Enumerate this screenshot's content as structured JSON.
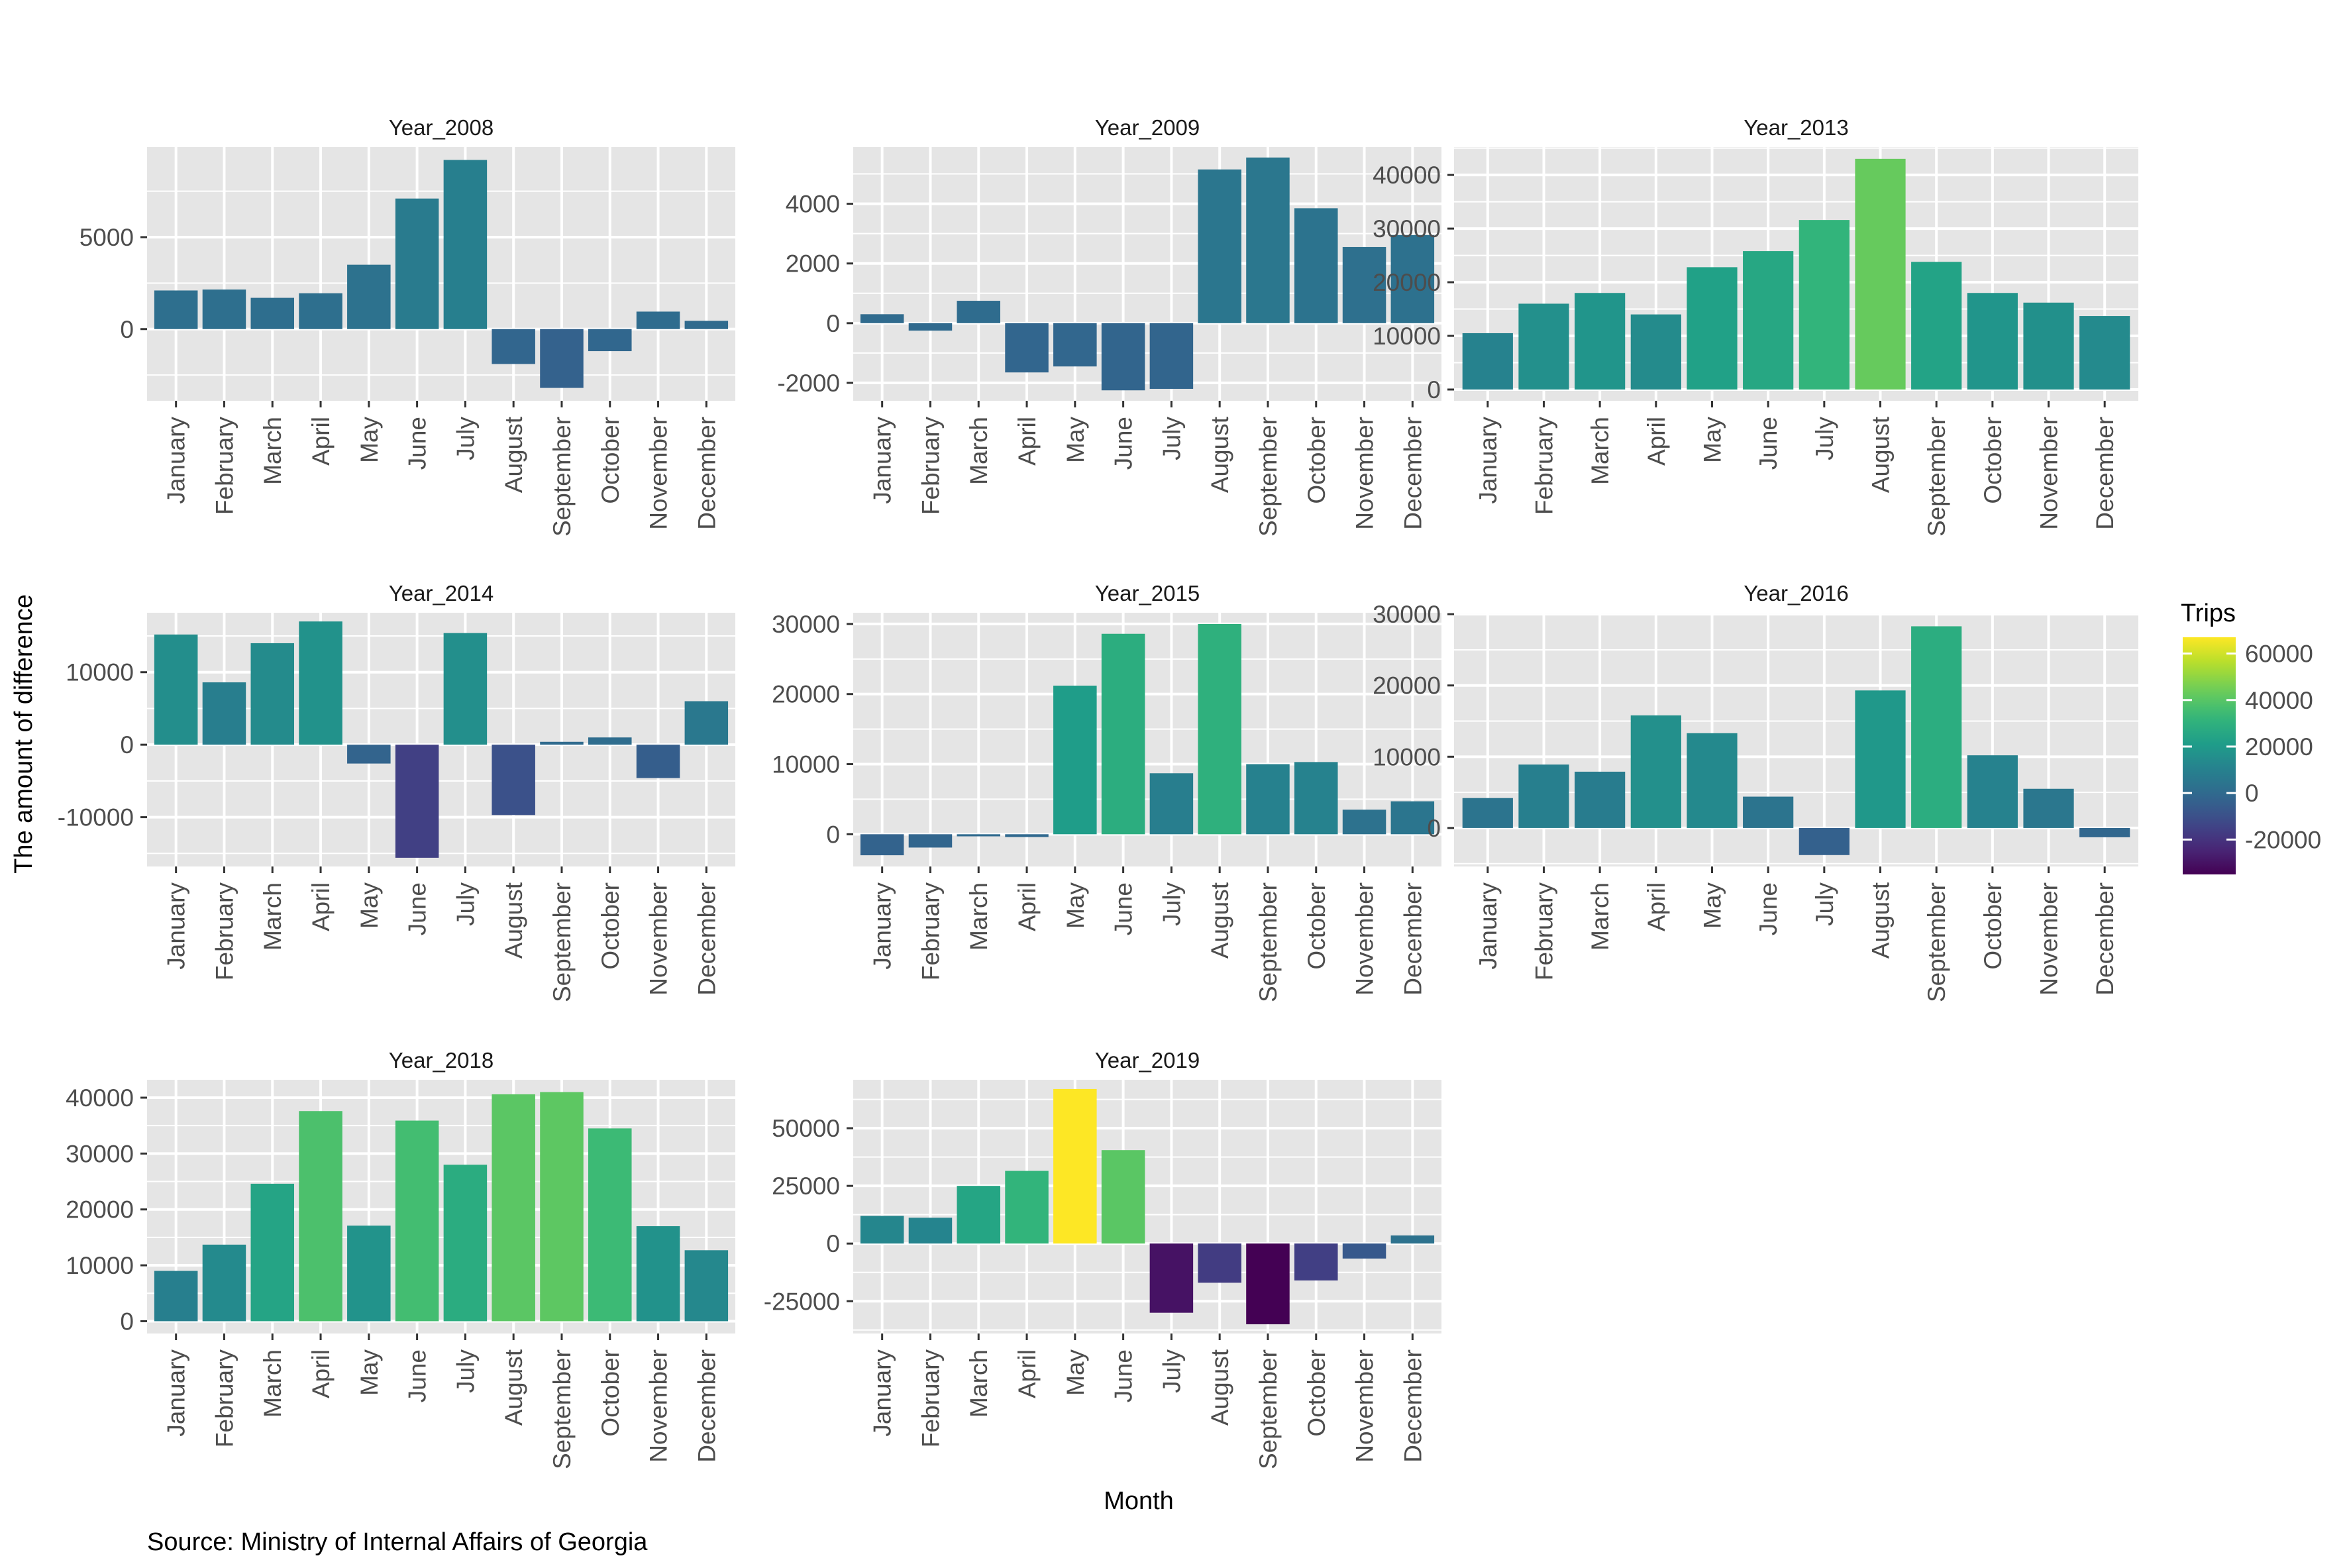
{
  "figure": {
    "ylabel": "The amount of difference",
    "xlabel": "Month",
    "caption": "Source: Ministry of Internal Affairs of Georgia",
    "legend": {
      "title": "Trips",
      "placement": "right",
      "ticks": [
        "60000",
        "40000",
        "20000",
        "0",
        "-20000"
      ],
      "tick_values": [
        60000,
        40000,
        20000,
        0,
        -20000
      ],
      "range": [
        -35000,
        67000
      ],
      "colormap": "viridis"
    },
    "colors": {
      "panel_bg": "#e5e5e5",
      "grid": "#ffffff",
      "text": "#4d4d4d",
      "title_text": "#1a1a1a"
    }
  },
  "chart_data": [
    {
      "type": "bar",
      "title": "Year_2008",
      "categories": [
        "January",
        "February",
        "March",
        "April",
        "May",
        "June",
        "July",
        "August",
        "September",
        "October",
        "November",
        "December"
      ],
      "values": [
        2100,
        2150,
        1700,
        1950,
        3500,
        7100,
        9200,
        -1900,
        -3200,
        -1200,
        950,
        450
      ],
      "ylim": [
        -3900,
        9900
      ],
      "yticks": [
        0,
        5000
      ],
      "yticklabels": [
        "0",
        "5000"
      ]
    },
    {
      "type": "bar",
      "title": "Year_2009",
      "categories": [
        "January",
        "February",
        "March",
        "April",
        "May",
        "June",
        "July",
        "August",
        "September",
        "October",
        "November",
        "December"
      ],
      "values": [
        300,
        -250,
        750,
        -1650,
        -1450,
        -2250,
        -2200,
        5150,
        5550,
        3850,
        2550,
        2950
      ],
      "ylim": [
        -2600,
        5900
      ],
      "yticks": [
        -2000,
        0,
        2000,
        4000
      ],
      "yticklabels": [
        "-2000",
        "0",
        "2000",
        "4000"
      ]
    },
    {
      "type": "bar",
      "title": "Year_2013",
      "categories": [
        "January",
        "February",
        "March",
        "April",
        "May",
        "June",
        "July",
        "August",
        "September",
        "October",
        "November",
        "December"
      ],
      "values": [
        10500,
        16000,
        18000,
        14000,
        22800,
        25800,
        31600,
        43000,
        23800,
        18000,
        16200,
        13700
      ],
      "ylim": [
        -2100,
        45200
      ],
      "yticks": [
        0,
        10000,
        20000,
        30000,
        40000
      ],
      "yticklabels": [
        "0",
        "10000",
        "20000",
        "30000",
        "40000"
      ]
    },
    {
      "type": "bar",
      "title": "Year_2014",
      "categories": [
        "January",
        "February",
        "March",
        "April",
        "May",
        "June",
        "July",
        "August",
        "September",
        "October",
        "November",
        "December"
      ],
      "values": [
        15200,
        8600,
        14000,
        17000,
        -2600,
        -15600,
        15400,
        -9700,
        400,
        1000,
        -4600,
        6000
      ],
      "ylim": [
        -16800,
        18200
      ],
      "yticks": [
        -10000,
        0,
        10000
      ],
      "yticklabels": [
        "-10000",
        "0",
        "10000"
      ]
    },
    {
      "type": "bar",
      "title": "Year_2015",
      "categories": [
        "January",
        "February",
        "March",
        "April",
        "May",
        "June",
        "July",
        "August",
        "September",
        "October",
        "November",
        "December"
      ],
      "values": [
        -3000,
        -1900,
        -300,
        -400,
        21200,
        28600,
        8700,
        30000,
        10000,
        10300,
        3500,
        4700
      ],
      "ylim": [
        -4600,
        31600
      ],
      "yticks": [
        0,
        10000,
        20000,
        30000
      ],
      "yticklabels": [
        "0",
        "10000",
        "20000",
        "30000"
      ]
    },
    {
      "type": "bar",
      "title": "Year_2016",
      "categories": [
        "January",
        "February",
        "March",
        "April",
        "May",
        "June",
        "July",
        "August",
        "September",
        "October",
        "November",
        "December"
      ],
      "values": [
        4200,
        8900,
        7900,
        15800,
        13300,
        4400,
        -3800,
        19300,
        28300,
        10200,
        5500,
        -1300
      ],
      "ylim": [
        -5400,
        30200
      ],
      "yticks": [
        0,
        10000,
        20000,
        30000
      ],
      "yticklabels": [
        "0",
        "10000",
        "20000",
        "30000"
      ]
    },
    {
      "type": "bar",
      "title": "Year_2018",
      "categories": [
        "January",
        "February",
        "March",
        "April",
        "May",
        "June",
        "July",
        "August",
        "September",
        "October",
        "November",
        "December"
      ],
      "values": [
        9000,
        13700,
        24600,
        37600,
        17100,
        35900,
        28000,
        40600,
        41000,
        34500,
        17000,
        12700
      ],
      "ylim": [
        -2200,
        43200
      ],
      "yticks": [
        0,
        10000,
        20000,
        30000,
        40000
      ],
      "yticklabels": [
        "0",
        "10000",
        "20000",
        "30000",
        "40000"
      ]
    },
    {
      "type": "bar",
      "title": "Year_2019",
      "categories": [
        "January",
        "February",
        "March",
        "April",
        "May",
        "June",
        "July",
        "August",
        "September",
        "October",
        "November",
        "December"
      ],
      "values": [
        12000,
        11200,
        25000,
        31500,
        67000,
        40500,
        -30000,
        -17000,
        -35000,
        -16000,
        -6500,
        3500
      ],
      "ylim": [
        -39000,
        71000
      ],
      "yticks": [
        -25000,
        0,
        25000,
        50000
      ],
      "yticklabels": [
        "-25000",
        "0",
        "25000",
        "50000"
      ]
    }
  ]
}
